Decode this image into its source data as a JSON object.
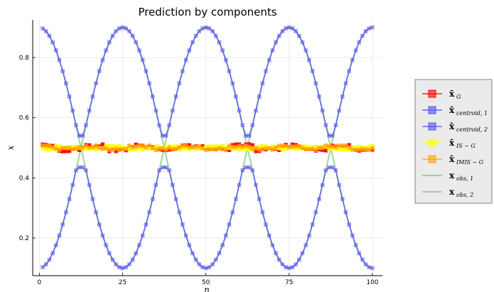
{
  "chart_data": {
    "type": "line",
    "title": "Prediction by components",
    "xlabel": "n",
    "ylabel": "x",
    "xlim": [
      -2,
      103
    ],
    "ylim": [
      0.075,
      0.925
    ],
    "xticks": [
      0,
      25,
      50,
      75,
      100
    ],
    "yticks": [
      0.2,
      0.4,
      0.6,
      0.8
    ],
    "xtick_labels": [
      "0",
      "25",
      "50",
      "75",
      "100"
    ],
    "ytick_labels": [
      "0.2",
      "0.4",
      "0.6",
      "0.8"
    ],
    "grid": true,
    "legend_position": "outer right",
    "series_formula": {
      "x_obs_1": "0.5 + 0.4*sin(2*pi*(n+12.5)/50)",
      "x_obs_2": "0.5 - 0.4*sin(2*pi*(n+12.5)/50)",
      "x_centroid_1": "upper branch max(x_obs_1, x_obs_2), min ~0.54 at n=37.5 and n=87.5",
      "x_centroid_2": "lower branch min(x_obs_1, x_obs_2), max ~0.43 near n=37.5 and n=87.5",
      "x_G": "approximately 0.5 with noise +/-0.01",
      "x_IS_G": "approximately 0.5",
      "x_IMIS_G": "approximately 0.5"
    },
    "series": [
      {
        "key": "xG",
        "name": "x̄",
        "name_sub": "G",
        "color": "#ff0000",
        "marker": "square"
      },
      {
        "key": "xc1",
        "name": "x̂",
        "name_sub": "centroid, 1",
        "color": "#5555ee",
        "marker": "square"
      },
      {
        "key": "xc2",
        "name": "x̂",
        "name_sub": "centroid, 2",
        "color": "#5555ee",
        "marker": "square"
      },
      {
        "key": "xis",
        "name": "x̄",
        "name_sub": "IS − G",
        "color": "#ffff00",
        "marker": "square"
      },
      {
        "key": "ximis",
        "name": "x̄",
        "name_sub": "IMIS − G",
        "color": "#ffa500",
        "marker": "square"
      },
      {
        "key": "xo1",
        "name": "x",
        "name_sub": "obs, 1",
        "color": "#8fce8f",
        "marker": "none"
      },
      {
        "key": "xo2",
        "name": "x",
        "name_sub": "obs, 2",
        "color": "#8fce8f",
        "marker": "none"
      }
    ]
  },
  "colors": {
    "observed": "#8fce8f",
    "centroid": "#5555ee",
    "G": "#ff0000",
    "IS": "#ffff00",
    "IMIS": "#ffa500",
    "legend_bg": "#ebebeb"
  }
}
